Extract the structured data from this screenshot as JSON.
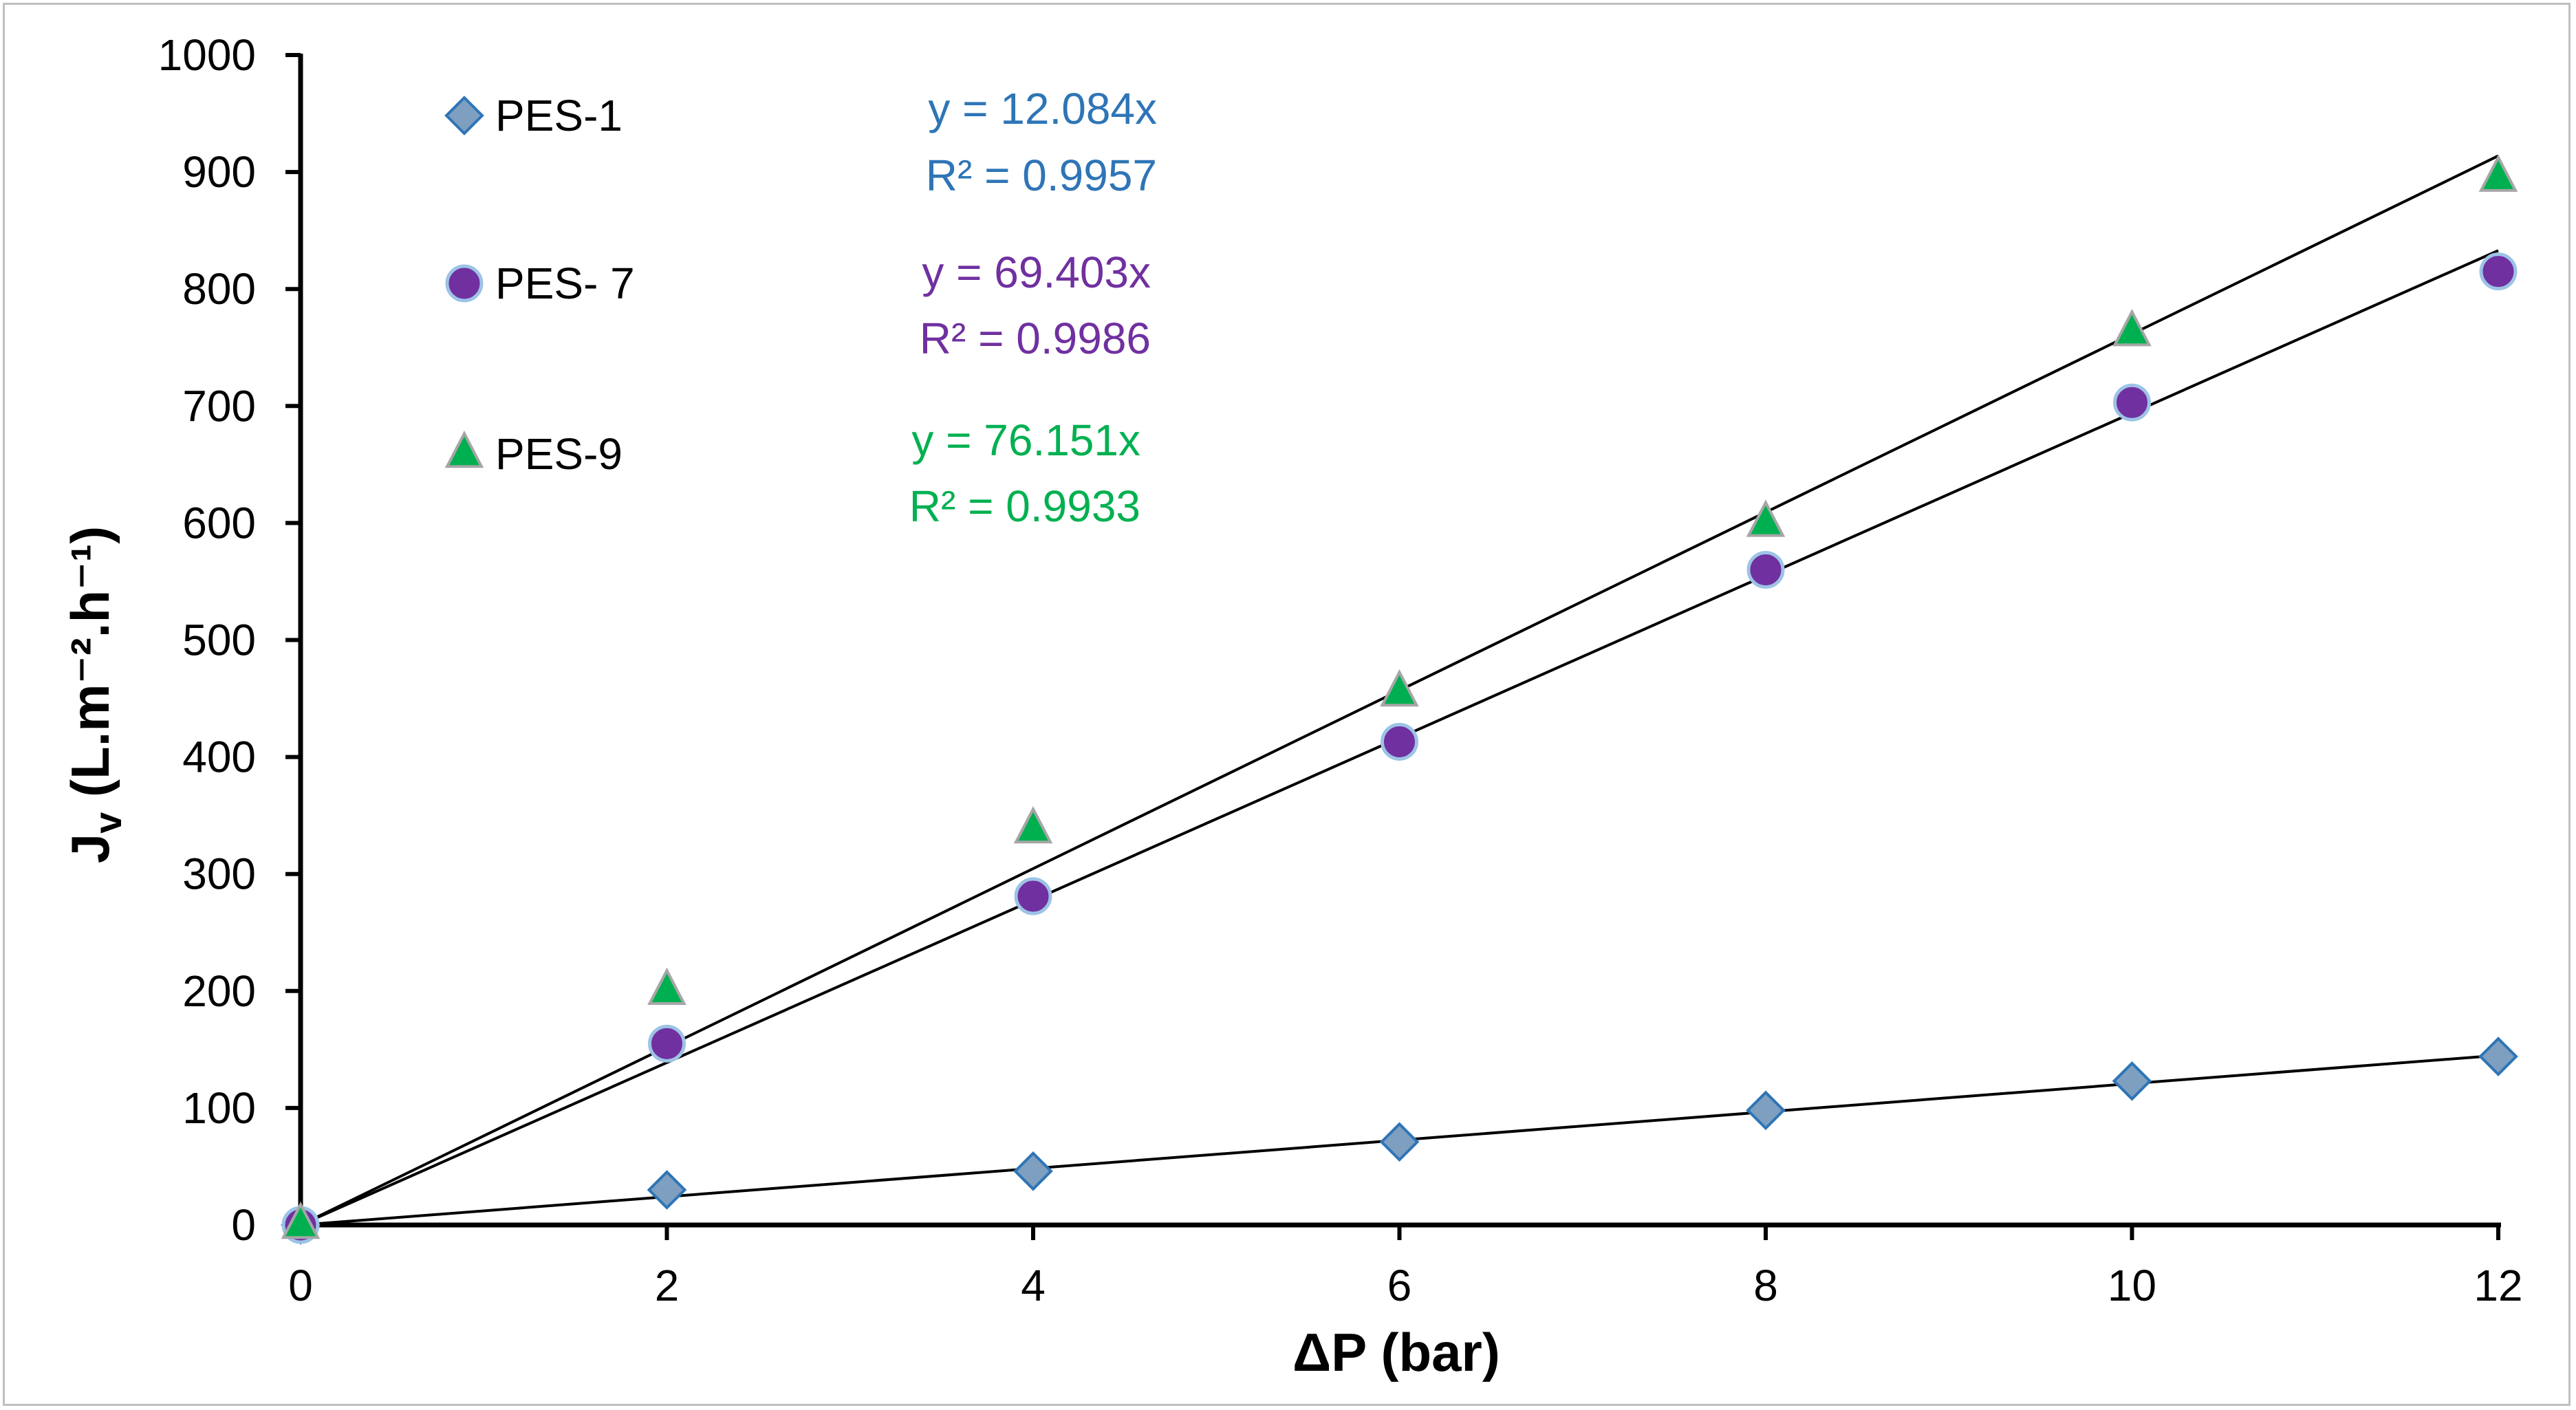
{
  "chart_data": {
    "type": "scatter",
    "title": "",
    "xlabel": "ΔP (bar)",
    "ylabel_main": "J",
    "ylabel_sub": "v",
    "ylabel_rest": " (L.m⁻².h⁻¹)",
    "xlim": [
      0,
      12
    ],
    "ylim": [
      0,
      1000
    ],
    "xticks": [
      0,
      2,
      4,
      6,
      8,
      10,
      12
    ],
    "yticks": [
      0,
      100,
      200,
      300,
      400,
      500,
      600,
      700,
      800,
      900,
      1000
    ],
    "grid": false,
    "legend_position": "top-left",
    "x": [
      0,
      2,
      4,
      6,
      8,
      10,
      12
    ],
    "series": [
      {
        "name": "PES-1",
        "marker": "diamond",
        "color": "#7f9fc0",
        "edge_color": "#2e75b6",
        "values": [
          0,
          30,
          46,
          71,
          98,
          123,
          144
        ],
        "trendline_slope": 12.084,
        "equation": "y = 12.084x",
        "r2": "R² = 0.9957",
        "label_color": "#2e75b6"
      },
      {
        "name": "PES- 7",
        "marker": "circle",
        "color": "#7030a0",
        "edge_color": "#9dc3e6",
        "values": [
          0,
          155,
          281,
          413,
          560,
          703,
          815
        ],
        "trendline_slope": 69.403,
        "equation": "y = 69.403x",
        "r2": "R² = 0.9986",
        "label_color": "#7030a0"
      },
      {
        "name": "PES-9",
        "marker": "triangle",
        "color": "#00b050",
        "edge_color": "#a6a6a6",
        "values": [
          0,
          200,
          338,
          455,
          600,
          763,
          895
        ],
        "trendline_slope": 76.151,
        "equation": "y = 76.151x",
        "r2": "R² = 0.9933",
        "label_color": "#00b050"
      }
    ]
  }
}
